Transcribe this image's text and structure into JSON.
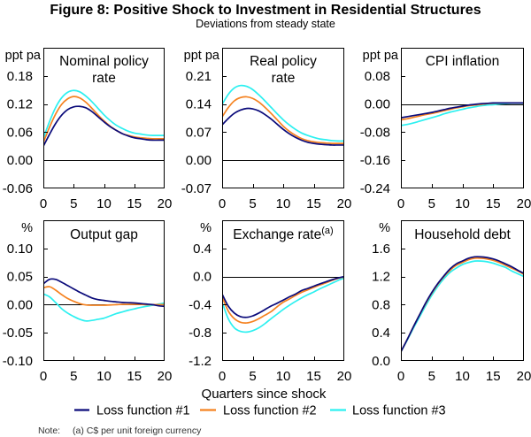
{
  "figure": {
    "title": "Figure 8: Positive Shock to Investment in Residential Structures",
    "subtitle": "Deviations from steady state",
    "xlabel": "Quarters since shock",
    "note_label": "Note:",
    "note_text": "(a) C$ per unit foreign currency"
  },
  "legend": {
    "placement": "bottom",
    "items": [
      {
        "label": "Loss function #1",
        "color": "#0a0a7a"
      },
      {
        "label": "Loss function #2",
        "color": "#f58220"
      },
      {
        "label": "Loss function #3",
        "color": "#2cf0f0"
      }
    ]
  },
  "chart_data": [
    {
      "type": "line",
      "title": "Nominal policy rate",
      "title_lines": [
        "Nominal policy",
        "rate"
      ],
      "title_superscript": "",
      "unit": "ppt pa",
      "xlabel": "Quarters since shock",
      "x": [
        0,
        1,
        2,
        3,
        4,
        5,
        6,
        7,
        8,
        9,
        10,
        11,
        12,
        13,
        14,
        15,
        16,
        17,
        18,
        19,
        20
      ],
      "xlim": [
        0,
        20
      ],
      "xticks": [
        0,
        5,
        10,
        15,
        20
      ],
      "xtick_labels": [
        "0",
        "5",
        "10",
        "15",
        "20"
      ],
      "ylim": [
        -0.06,
        0.24
      ],
      "yticks": [
        -0.06,
        0.0,
        0.06,
        0.12,
        0.18
      ],
      "ytick_labels": [
        "-0.06",
        "0.00",
        "0.06",
        "0.12",
        "0.18"
      ],
      "grid": false,
      "series": [
        {
          "name": "Loss function #1",
          "color": "#0a0a7a",
          "values": [
            0.03,
            0.055,
            0.078,
            0.096,
            0.108,
            0.114,
            0.115,
            0.112,
            0.104,
            0.093,
            0.082,
            0.072,
            0.064,
            0.057,
            0.052,
            0.048,
            0.046,
            0.044,
            0.043,
            0.043,
            0.043
          ]
        },
        {
          "name": "Loss function #2",
          "color": "#f58220",
          "values": [
            0.038,
            0.07,
            0.098,
            0.119,
            0.131,
            0.136,
            0.133,
            0.124,
            0.111,
            0.097,
            0.084,
            0.073,
            0.064,
            0.057,
            0.053,
            0.05,
            0.048,
            0.047,
            0.046,
            0.046,
            0.046
          ]
        },
        {
          "name": "Loss function #3",
          "color": "#2cf0f0",
          "values": [
            0.047,
            0.082,
            0.112,
            0.133,
            0.145,
            0.149,
            0.146,
            0.137,
            0.125,
            0.111,
            0.097,
            0.085,
            0.075,
            0.068,
            0.062,
            0.058,
            0.056,
            0.054,
            0.053,
            0.053,
            0.053
          ]
        }
      ]
    },
    {
      "type": "line",
      "title": "Real policy rate",
      "title_lines": [
        "Real policy",
        "rate"
      ],
      "title_superscript": "",
      "unit": "ppt pa",
      "xlabel": "Quarters since shock",
      "x": [
        0,
        1,
        2,
        3,
        4,
        5,
        6,
        7,
        8,
        9,
        10,
        11,
        12,
        13,
        14,
        15,
        16,
        17,
        18,
        19,
        20
      ],
      "xlim": [
        0,
        20
      ],
      "xticks": [
        0,
        5,
        10,
        15,
        20
      ],
      "xtick_labels": [
        "0",
        "5",
        "10",
        "15",
        "20"
      ],
      "ylim": [
        -0.07,
        0.28
      ],
      "yticks": [
        -0.07,
        0.0,
        0.07,
        0.14,
        0.21
      ],
      "ytick_labels": [
        "-0.07",
        "0.00",
        "0.07",
        "0.14",
        "0.21"
      ],
      "grid": false,
      "series": [
        {
          "name": "Loss function #1",
          "color": "#0a0a7a",
          "values": [
            0.088,
            0.104,
            0.117,
            0.125,
            0.129,
            0.128,
            0.123,
            0.114,
            0.103,
            0.09,
            0.077,
            0.066,
            0.057,
            0.05,
            0.045,
            0.042,
            0.04,
            0.039,
            0.038,
            0.038,
            0.038
          ]
        },
        {
          "name": "Loss function #2",
          "color": "#f58220",
          "values": [
            0.108,
            0.131,
            0.148,
            0.156,
            0.158,
            0.154,
            0.145,
            0.132,
            0.117,
            0.101,
            0.085,
            0.072,
            0.062,
            0.054,
            0.049,
            0.046,
            0.044,
            0.043,
            0.042,
            0.042,
            0.042
          ]
        },
        {
          "name": "Loss function #3",
          "color": "#2cf0f0",
          "values": [
            0.139,
            0.164,
            0.18,
            0.186,
            0.184,
            0.176,
            0.163,
            0.148,
            0.132,
            0.116,
            0.101,
            0.088,
            0.077,
            0.068,
            0.062,
            0.057,
            0.053,
            0.051,
            0.049,
            0.048,
            0.048
          ]
        }
      ]
    },
    {
      "type": "line",
      "title": "CPI inflation",
      "title_lines": [
        "CPI inflation"
      ],
      "title_superscript": "",
      "unit": "ppt pa",
      "xlabel": "Quarters since shock",
      "x": [
        0,
        1,
        2,
        3,
        4,
        5,
        6,
        7,
        8,
        9,
        10,
        11,
        12,
        13,
        14,
        15,
        16,
        17,
        18,
        19,
        20
      ],
      "xlim": [
        0,
        20
      ],
      "xticks": [
        0,
        5,
        10,
        15,
        20
      ],
      "xtick_labels": [
        "0",
        "5",
        "10",
        "15",
        "20"
      ],
      "ylim": [
        -0.24,
        0.16
      ],
      "yticks": [
        -0.24,
        -0.16,
        -0.08,
        0.0,
        0.08
      ],
      "ytick_labels": [
        "-0.24",
        "-0.16",
        "-0.08",
        "0.00",
        "0.08"
      ],
      "grid": false,
      "series": [
        {
          "name": "Loss function #1",
          "color": "#0a0a7a",
          "values": [
            -0.039,
            -0.036,
            -0.033,
            -0.03,
            -0.027,
            -0.024,
            -0.02,
            -0.016,
            -0.012,
            -0.009,
            -0.006,
            -0.003,
            -0.001,
            0.001,
            0.002,
            0.003,
            0.003,
            0.003,
            0.003,
            0.003,
            0.003
          ]
        },
        {
          "name": "Loss function #2",
          "color": "#f58220",
          "values": [
            -0.045,
            -0.042,
            -0.038,
            -0.034,
            -0.03,
            -0.027,
            -0.023,
            -0.019,
            -0.015,
            -0.011,
            -0.008,
            -0.005,
            -0.003,
            -0.001,
            0.001,
            0.002,
            0.003,
            0.003,
            0.003,
            0.003,
            0.003
          ]
        },
        {
          "name": "Loss function #3",
          "color": "#2cf0f0",
          "values": [
            -0.061,
            -0.058,
            -0.054,
            -0.049,
            -0.044,
            -0.039,
            -0.034,
            -0.028,
            -0.023,
            -0.019,
            -0.015,
            -0.011,
            -0.008,
            -0.005,
            -0.003,
            -0.002,
            0.0,
            0.001,
            0.002,
            0.002,
            0.002
          ]
        }
      ]
    },
    {
      "type": "line",
      "title": "Output gap",
      "title_lines": [
        "Output gap"
      ],
      "title_superscript": "",
      "unit": "%",
      "xlabel": "Quarters since shock",
      "x": [
        0,
        1,
        2,
        3,
        4,
        5,
        6,
        7,
        8,
        9,
        10,
        11,
        12,
        13,
        14,
        15,
        16,
        17,
        18,
        19,
        20
      ],
      "xlim": [
        0,
        20
      ],
      "xticks": [
        0,
        5,
        10,
        15,
        20
      ],
      "xtick_labels": [
        "0",
        "5",
        "10",
        "15",
        "20"
      ],
      "ylim": [
        -0.1,
        0.15
      ],
      "yticks": [
        -0.1,
        -0.05,
        0.0,
        0.05,
        0.1
      ],
      "ytick_labels": [
        "-0.10",
        "-0.05",
        "0.00",
        "0.05",
        "0.10"
      ],
      "grid": false,
      "series": [
        {
          "name": "Loss function #1",
          "color": "#0a0a7a",
          "values": [
            0.037,
            0.045,
            0.045,
            0.04,
            0.034,
            0.028,
            0.022,
            0.017,
            0.012,
            0.009,
            0.0075,
            0.006,
            0.005,
            0.004,
            0.0035,
            0.003,
            0.002,
            0.001,
            0.0,
            -0.002,
            -0.003
          ]
        },
        {
          "name": "Loss function #2",
          "color": "#f58220",
          "values": [
            0.03,
            0.032,
            0.026,
            0.018,
            0.011,
            0.006,
            0.002,
            -0.0005,
            -0.001,
            -0.001,
            -0.001,
            -0.0005,
            0.0,
            0.0005,
            0.0005,
            0.0005,
            0.0005,
            0.0,
            0.0,
            0.0,
            0.0
          ]
        },
        {
          "name": "Loss function #3",
          "color": "#2cf0f0",
          "values": [
            0.019,
            0.014,
            0.004,
            -0.007,
            -0.015,
            -0.021,
            -0.026,
            -0.029,
            -0.028,
            -0.026,
            -0.024,
            -0.02,
            -0.016,
            -0.013,
            -0.01,
            -0.0075,
            -0.005,
            -0.003,
            -0.001,
            0.001,
            0.003
          ]
        }
      ]
    },
    {
      "type": "line",
      "title": "Exchange rate",
      "title_lines": [
        "Exchange rate"
      ],
      "title_superscript": "(a)",
      "unit": "%",
      "xlabel": "Quarters since shock",
      "x": [
        0,
        1,
        2,
        3,
        4,
        5,
        6,
        7,
        8,
        9,
        10,
        11,
        12,
        13,
        14,
        15,
        16,
        17,
        18,
        19,
        20
      ],
      "xlim": [
        0,
        20
      ],
      "xticks": [
        0,
        5,
        10,
        15,
        20
      ],
      "xtick_labels": [
        "0",
        "5",
        "10",
        "15",
        "20"
      ],
      "ylim": [
        -1.2,
        0.8
      ],
      "yticks": [
        -1.2,
        -0.8,
        -0.4,
        0.0,
        0.4
      ],
      "ytick_labels": [
        "-1.2",
        "-0.8",
        "-0.4",
        "0.0",
        "0.4"
      ],
      "grid": false,
      "series": [
        {
          "name": "Loss function #1",
          "color": "#0a0a7a",
          "values": [
            -0.25,
            -0.42,
            -0.52,
            -0.57,
            -0.58,
            -0.56,
            -0.52,
            -0.47,
            -0.42,
            -0.38,
            -0.335,
            -0.29,
            -0.25,
            -0.2,
            -0.17,
            -0.137,
            -0.105,
            -0.075,
            -0.045,
            -0.02,
            0.0
          ]
        },
        {
          "name": "Loss function #2",
          "color": "#f58220",
          "values": [
            -0.29,
            -0.49,
            -0.6,
            -0.65,
            -0.66,
            -0.64,
            -0.6,
            -0.55,
            -0.5,
            -0.43,
            -0.365,
            -0.32,
            -0.27,
            -0.225,
            -0.19,
            -0.154,
            -0.12,
            -0.09,
            -0.055,
            -0.025,
            -0.005
          ]
        },
        {
          "name": "Loss function #3",
          "color": "#2cf0f0",
          "values": [
            -0.365,
            -0.6,
            -0.73,
            -0.78,
            -0.79,
            -0.77,
            -0.73,
            -0.67,
            -0.6,
            -0.535,
            -0.468,
            -0.41,
            -0.355,
            -0.305,
            -0.26,
            -0.22,
            -0.175,
            -0.135,
            -0.095,
            -0.055,
            -0.02
          ]
        }
      ]
    },
    {
      "type": "line",
      "title": "Household debt",
      "title_lines": [
        "Household debt"
      ],
      "title_superscript": "",
      "unit": "%",
      "xlabel": "Quarters since shock",
      "x": [
        0,
        1,
        2,
        3,
        4,
        5,
        6,
        7,
        8,
        9,
        10,
        11,
        12,
        13,
        14,
        15,
        16,
        17,
        18,
        19,
        20
      ],
      "xlim": [
        0,
        20
      ],
      "xticks": [
        0,
        5,
        10,
        15,
        20
      ],
      "xtick_labels": [
        "0",
        "5",
        "10",
        "15",
        "20"
      ],
      "ylim": [
        0.0,
        2.0
      ],
      "yticks": [
        0.0,
        0.4,
        0.8,
        1.2,
        1.6
      ],
      "ytick_labels": [
        "0.0",
        "0.4",
        "0.8",
        "1.2",
        "1.6"
      ],
      "grid": false,
      "series": [
        {
          "name": "Loss function #1",
          "color": "#0a0a7a",
          "values": [
            0.13,
            0.3,
            0.48,
            0.65,
            0.82,
            0.97,
            1.1,
            1.21,
            1.31,
            1.38,
            1.42,
            1.46,
            1.48,
            1.48,
            1.47,
            1.45,
            1.42,
            1.38,
            1.34,
            1.29,
            1.245
          ]
        },
        {
          "name": "Loss function #2",
          "color": "#f58220",
          "values": [
            0.13,
            0.3,
            0.48,
            0.65,
            0.81,
            0.96,
            1.09,
            1.2,
            1.29,
            1.36,
            1.4,
            1.44,
            1.46,
            1.46,
            1.45,
            1.43,
            1.4,
            1.36,
            1.32,
            1.28,
            1.23
          ]
        },
        {
          "name": "Loss function #3",
          "color": "#2cf0f0",
          "values": [
            0.13,
            0.29,
            0.46,
            0.62,
            0.78,
            0.93,
            1.06,
            1.17,
            1.26,
            1.32,
            1.37,
            1.4,
            1.42,
            1.42,
            1.41,
            1.39,
            1.36,
            1.33,
            1.28,
            1.24,
            1.2
          ]
        }
      ]
    }
  ]
}
